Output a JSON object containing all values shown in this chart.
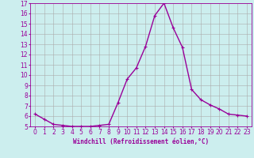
{
  "x": [
    0,
    1,
    2,
    3,
    4,
    5,
    6,
    7,
    8,
    9,
    10,
    11,
    12,
    13,
    14,
    15,
    16,
    17,
    18,
    19,
    20,
    21,
    22,
    23
  ],
  "y": [
    6.2,
    5.7,
    5.2,
    5.1,
    5.0,
    5.0,
    5.0,
    5.1,
    5.2,
    7.3,
    9.6,
    10.7,
    12.8,
    15.8,
    17.0,
    14.6,
    12.7,
    8.6,
    7.6,
    7.1,
    6.7,
    6.2,
    6.1,
    6.0
  ],
  "line_color": "#990099",
  "marker": "+",
  "marker_size": 3,
  "bg_color": "#cceeee",
  "grid_color": "#aaaaaa",
  "xlabel": "Windchill (Refroidissement éolien,°C)",
  "ylabel": "",
  "title": "",
  "xlim": [
    -0.5,
    23.5
  ],
  "ylim": [
    5,
    17
  ],
  "xticks": [
    0,
    1,
    2,
    3,
    4,
    5,
    6,
    7,
    8,
    9,
    10,
    11,
    12,
    13,
    14,
    15,
    16,
    17,
    18,
    19,
    20,
    21,
    22,
    23
  ],
  "yticks": [
    5,
    6,
    7,
    8,
    9,
    10,
    11,
    12,
    13,
    14,
    15,
    16,
    17
  ],
  "xlabel_fontsize": 5.5,
  "tick_fontsize": 5.5,
  "line_width": 1.0
}
